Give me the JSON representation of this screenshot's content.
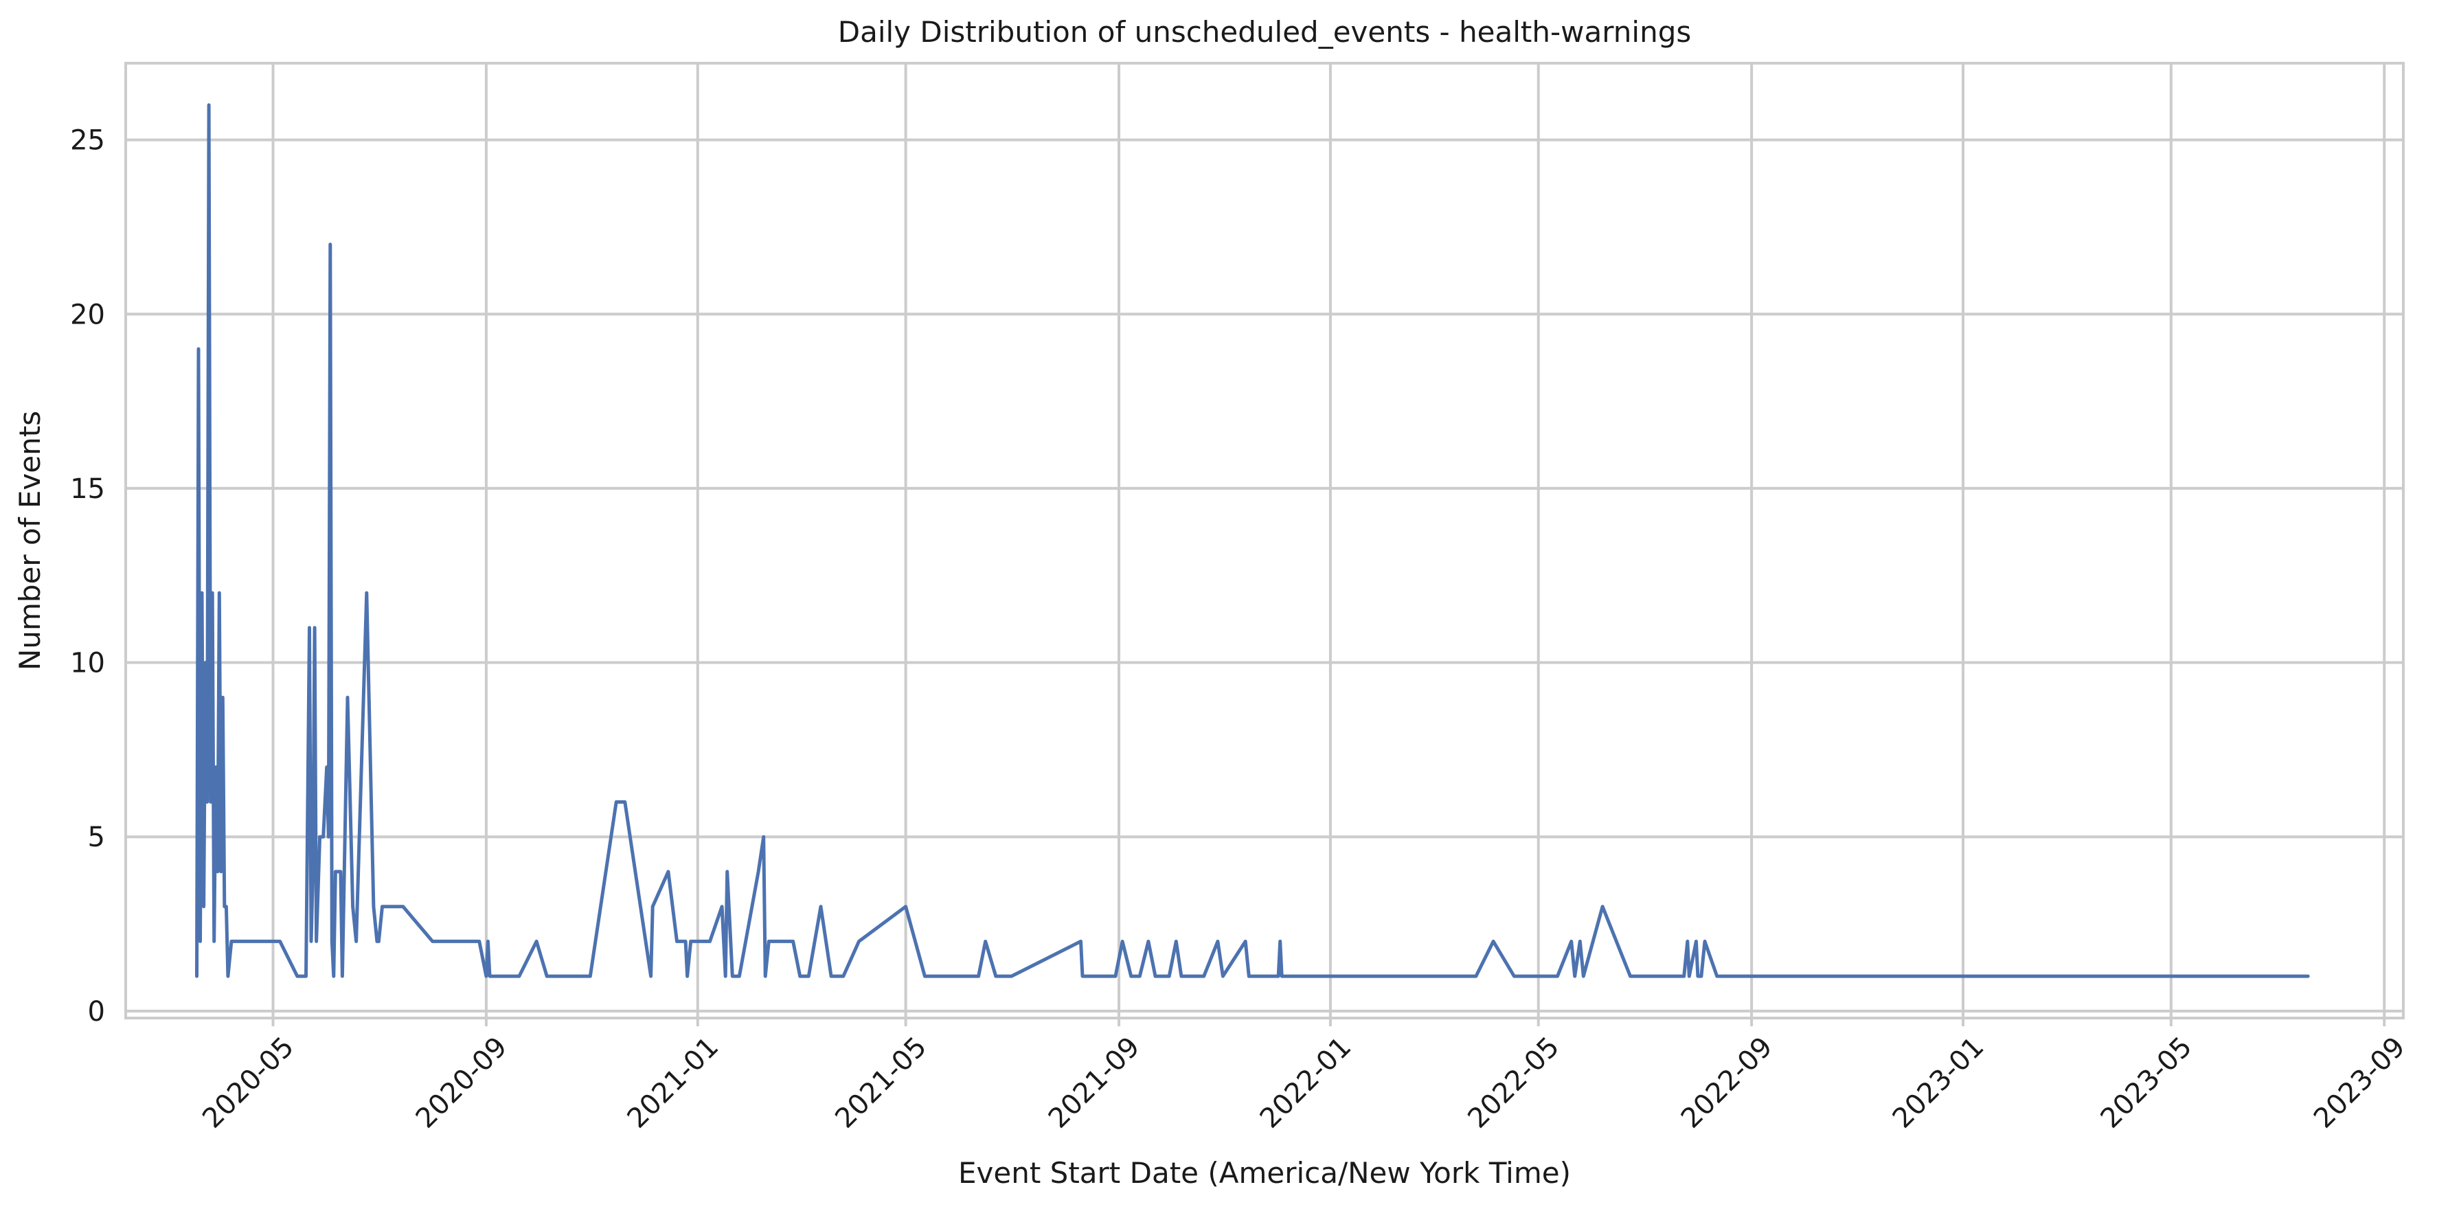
{
  "chart_data": {
    "type": "line",
    "title": "Daily Distribution of unscheduled_events - health-warnings",
    "xlabel": "Event Start Date (America/New York Time)",
    "ylabel": "Number of Events",
    "xlim": [
      "2020-02-06",
      "2023-09-12"
    ],
    "ylim": [
      -0.2,
      27.2
    ],
    "x_ticks": [
      "2020-05",
      "2020-09",
      "2021-01",
      "2021-05",
      "2021-09",
      "2022-01",
      "2022-05",
      "2022-09",
      "2023-01",
      "2023-05",
      "2023-09"
    ],
    "y_ticks": [
      0,
      5,
      10,
      15,
      20,
      25
    ],
    "grid": true,
    "line_color": "#4c72b0",
    "series": [
      {
        "points": [
          [
            "2020-03-18",
            1
          ],
          [
            "2020-03-19",
            19
          ],
          [
            "2020-03-20",
            2
          ],
          [
            "2020-03-21",
            12
          ],
          [
            "2020-03-22",
            3
          ],
          [
            "2020-03-23",
            10
          ],
          [
            "2020-03-24",
            6
          ],
          [
            "2020-03-25",
            26
          ],
          [
            "2020-03-26",
            6
          ],
          [
            "2020-03-27",
            12
          ],
          [
            "2020-03-28",
            2
          ],
          [
            "2020-03-29",
            7
          ],
          [
            "2020-03-30",
            4
          ],
          [
            "2020-03-31",
            12
          ],
          [
            "2020-04-01",
            4
          ],
          [
            "2020-04-02",
            9
          ],
          [
            "2020-04-03",
            3
          ],
          [
            "2020-04-04",
            3
          ],
          [
            "2020-04-05",
            1
          ],
          [
            "2020-04-07",
            2
          ],
          [
            "2020-04-15",
            2
          ],
          [
            "2020-05-05",
            2
          ],
          [
            "2020-05-15",
            1
          ],
          [
            "2020-05-20",
            1
          ],
          [
            "2020-05-22",
            11
          ],
          [
            "2020-05-23",
            2
          ],
          [
            "2020-05-24",
            4
          ],
          [
            "2020-05-25",
            11
          ],
          [
            "2020-05-26",
            2
          ],
          [
            "2020-05-28",
            5
          ],
          [
            "2020-05-30",
            5
          ],
          [
            "2020-06-01",
            7
          ],
          [
            "2020-06-02",
            5
          ],
          [
            "2020-06-03",
            22
          ],
          [
            "2020-06-04",
            2
          ],
          [
            "2020-06-05",
            1
          ],
          [
            "2020-06-06",
            4
          ],
          [
            "2020-06-09",
            4
          ],
          [
            "2020-06-10",
            1
          ],
          [
            "2020-06-13",
            9
          ],
          [
            "2020-06-16",
            3
          ],
          [
            "2020-06-18",
            2
          ],
          [
            "2020-06-24",
            12
          ],
          [
            "2020-06-28",
            3
          ],
          [
            "2020-06-30",
            2
          ],
          [
            "2020-07-01",
            2
          ],
          [
            "2020-07-03",
            3
          ],
          [
            "2020-07-15",
            3
          ],
          [
            "2020-08-01",
            2
          ],
          [
            "2020-08-28",
            2
          ],
          [
            "2020-09-01",
            1
          ],
          [
            "2020-09-02",
            2
          ],
          [
            "2020-09-03",
            1
          ],
          [
            "2020-09-20",
            1
          ],
          [
            "2020-09-30",
            2
          ],
          [
            "2020-10-06",
            1
          ],
          [
            "2020-10-31",
            1
          ],
          [
            "2020-11-15",
            6
          ],
          [
            "2020-11-20",
            6
          ],
          [
            "2020-12-05",
            1
          ],
          [
            "2020-12-06",
            3
          ],
          [
            "2020-12-15",
            4
          ],
          [
            "2020-12-20",
            2
          ],
          [
            "2020-12-25",
            2
          ],
          [
            "2020-12-26",
            1
          ],
          [
            "2020-12-28",
            2
          ],
          [
            "2021-01-08",
            2
          ],
          [
            "2021-01-15",
            3
          ],
          [
            "2021-01-17",
            1
          ],
          [
            "2021-01-18",
            4
          ],
          [
            "2021-01-21",
            1
          ],
          [
            "2021-01-25",
            1
          ],
          [
            "2021-02-05",
            4
          ],
          [
            "2021-02-08",
            5
          ],
          [
            "2021-02-09",
            1
          ],
          [
            "2021-02-11",
            2
          ],
          [
            "2021-02-25",
            2
          ],
          [
            "2021-03-01",
            1
          ],
          [
            "2021-03-06",
            1
          ],
          [
            "2021-03-13",
            3
          ],
          [
            "2021-03-19",
            1
          ],
          [
            "2021-03-26",
            1
          ],
          [
            "2021-04-04",
            2
          ],
          [
            "2021-05-01",
            3
          ],
          [
            "2021-05-12",
            1
          ],
          [
            "2021-06-12",
            1
          ],
          [
            "2021-06-16",
            2
          ],
          [
            "2021-06-22",
            1
          ],
          [
            "2021-07-01",
            1
          ],
          [
            "2021-08-10",
            2
          ],
          [
            "2021-08-11",
            1
          ],
          [
            "2021-08-30",
            1
          ],
          [
            "2021-09-03",
            2
          ],
          [
            "2021-09-08",
            1
          ],
          [
            "2021-09-13",
            1
          ],
          [
            "2021-09-18",
            2
          ],
          [
            "2021-09-22",
            1
          ],
          [
            "2021-09-30",
            1
          ],
          [
            "2021-10-04",
            2
          ],
          [
            "2021-10-07",
            1
          ],
          [
            "2021-10-20",
            1
          ],
          [
            "2021-10-28",
            2
          ],
          [
            "2021-10-31",
            1
          ],
          [
            "2021-11-13",
            2
          ],
          [
            "2021-11-15",
            1
          ],
          [
            "2021-12-02",
            1
          ],
          [
            "2021-12-03",
            2
          ],
          [
            "2021-12-04",
            1
          ],
          [
            "2022-03-26",
            1
          ],
          [
            "2022-04-05",
            2
          ],
          [
            "2022-04-17",
            1
          ],
          [
            "2022-05-12",
            1
          ],
          [
            "2022-05-20",
            2
          ],
          [
            "2022-05-22",
            1
          ],
          [
            "2022-05-25",
            2
          ],
          [
            "2022-05-27",
            1
          ],
          [
            "2022-06-07",
            3
          ],
          [
            "2022-06-23",
            1
          ],
          [
            "2022-07-24",
            1
          ],
          [
            "2022-07-26",
            2
          ],
          [
            "2022-07-27",
            1
          ],
          [
            "2022-07-31",
            2
          ],
          [
            "2022-08-01",
            1
          ],
          [
            "2022-08-03",
            1
          ],
          [
            "2022-08-05",
            2
          ],
          [
            "2022-08-12",
            1
          ],
          [
            "2023-07-19",
            1
          ]
        ]
      }
    ]
  }
}
